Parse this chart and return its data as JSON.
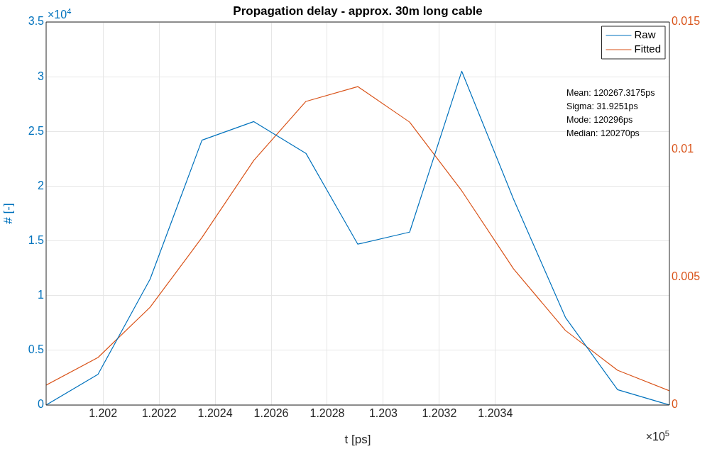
{
  "chart_data": {
    "type": "line",
    "title": "Propagation delay - approx. 30m long cable",
    "xlabel": "t [ps]",
    "ylabel": "# [-]",
    "x": [
      1.201797,
      1.201982,
      1.202168,
      1.202353,
      1.202538,
      1.202724,
      1.202909,
      1.203094,
      1.20328,
      1.203465,
      1.20365,
      1.203836,
      1.204021
    ],
    "series": [
      {
        "name": "Raw",
        "color": "#0072bd",
        "values": [
          0,
          0.28,
          1.15,
          2.42,
          2.59,
          2.3,
          1.47,
          1.58,
          3.05,
          1.88,
          0.8,
          0.14,
          0
        ]
      },
      {
        "name": "Fitted",
        "color": "#d95319",
        "axis": "y2",
        "values": [
          0.00078,
          0.00186,
          0.00383,
          0.00656,
          0.00958,
          0.01189,
          0.01247,
          0.01108,
          0.00839,
          0.00533,
          0.00292,
          0.00136,
          0.00056
        ]
      }
    ],
    "xlim": [
      1.201797,
      1.204021
    ],
    "xticks": [
      1.202,
      1.2022,
      1.2024,
      1.2026,
      1.2028,
      1.203,
      1.2032,
      1.2034
    ],
    "ylim": [
      0,
      3.5
    ],
    "yticks": [
      0,
      0.5,
      1,
      1.5,
      2,
      2.5,
      3,
      3.5
    ],
    "y2lim": [
      0,
      0.015
    ],
    "y2ticks": [
      0,
      0.005,
      0.01,
      0.015
    ],
    "grid": true,
    "legend": "top right",
    "marker": "none",
    "line_style": "solid",
    "annotations": [
      "×10$^{4}$",
      "×10$^{5}$",
      "Mean: 120267.3175ps",
      "Sigma: 31.9251ps",
      "Mode: 120296ps",
      "Median: 120270ps"
    ]
  }
}
